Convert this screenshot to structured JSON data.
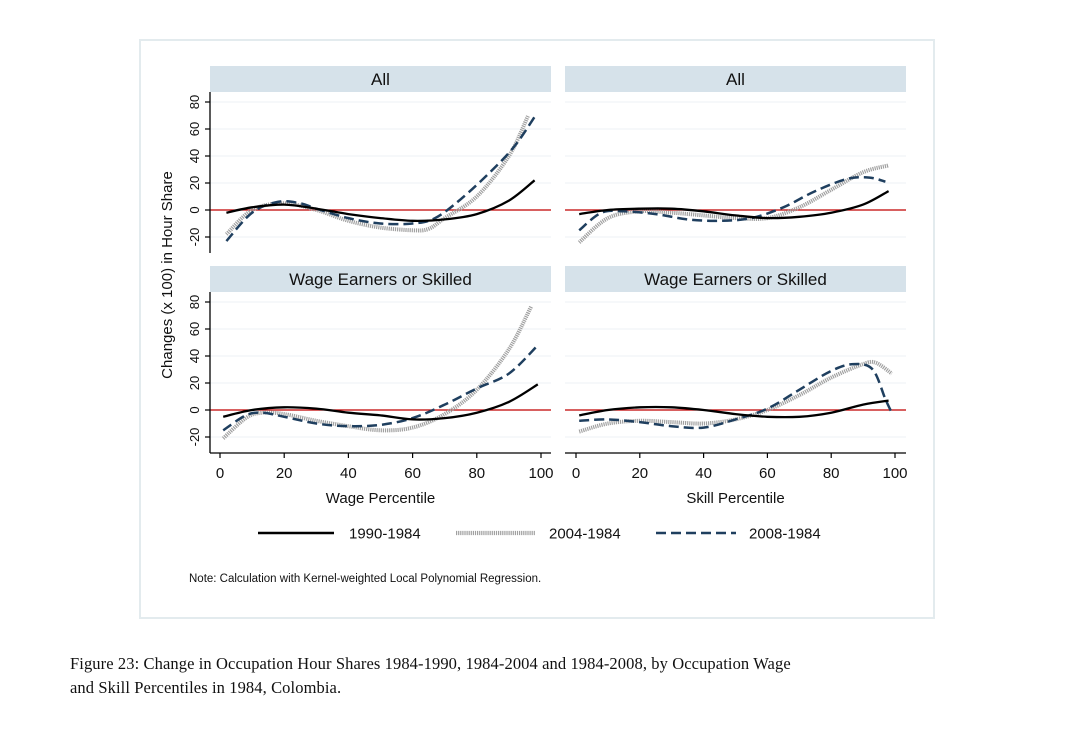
{
  "chart_data": [
    {
      "type": "line",
      "panel": "top-left",
      "title": "All",
      "xlabel": "",
      "ylabel": "Changes (x 100) in Hour Share",
      "xlim": [
        0,
        100
      ],
      "ylim": [
        -32,
        88
      ],
      "xticks": [
        0,
        20,
        40,
        60,
        80,
        100
      ],
      "yticks": [
        -20,
        0,
        20,
        40,
        60,
        80
      ],
      "show_xticks": false,
      "show_yticks": true,
      "reference_line_y": 0,
      "series": [
        {
          "name": "1990-1984",
          "points": [
            [
              2,
              -2
            ],
            [
              10,
              2
            ],
            [
              20,
              4
            ],
            [
              30,
              1
            ],
            [
              40,
              -3
            ],
            [
              50,
              -6
            ],
            [
              60,
              -8
            ],
            [
              70,
              -7
            ],
            [
              80,
              -3
            ],
            [
              90,
              7
            ],
            [
              98,
              22
            ]
          ]
        },
        {
          "name": "2004-1984",
          "points": [
            [
              2,
              -18
            ],
            [
              10,
              0
            ],
            [
              20,
              5
            ],
            [
              30,
              0
            ],
            [
              40,
              -8
            ],
            [
              50,
              -13
            ],
            [
              60,
              -15
            ],
            [
              65,
              -14
            ],
            [
              70,
              -6
            ],
            [
              80,
              10
            ],
            [
              90,
              40
            ],
            [
              96,
              70
            ]
          ]
        },
        {
          "name": "2008-1984",
          "points": [
            [
              2,
              -23
            ],
            [
              10,
              -2
            ],
            [
              18,
              6
            ],
            [
              25,
              5
            ],
            [
              30,
              1
            ],
            [
              40,
              -6
            ],
            [
              50,
              -10
            ],
            [
              60,
              -10
            ],
            [
              67,
              -6
            ],
            [
              75,
              8
            ],
            [
              85,
              30
            ],
            [
              92,
              48
            ],
            [
              98,
              69
            ]
          ]
        }
      ]
    },
    {
      "type": "line",
      "panel": "top-right",
      "title": "All",
      "xlabel": "",
      "ylabel": "",
      "xlim": [
        0,
        100
      ],
      "ylim": [
        -32,
        88
      ],
      "xticks": [
        0,
        20,
        40,
        60,
        80,
        100
      ],
      "yticks": [
        -20,
        0,
        20,
        40,
        60,
        80
      ],
      "show_xticks": false,
      "show_yticks": false,
      "reference_line_y": 0,
      "series": [
        {
          "name": "1990-1984",
          "points": [
            [
              1,
              -3
            ],
            [
              10,
              0
            ],
            [
              20,
              1
            ],
            [
              30,
              1
            ],
            [
              40,
              -1
            ],
            [
              50,
              -4
            ],
            [
              60,
              -6
            ],
            [
              70,
              -5
            ],
            [
              80,
              -2
            ],
            [
              90,
              4
            ],
            [
              98,
              14
            ]
          ]
        },
        {
          "name": "2004-1984",
          "points": [
            [
              1,
              -24
            ],
            [
              10,
              -6
            ],
            [
              20,
              -1
            ],
            [
              30,
              -2
            ],
            [
              40,
              -4
            ],
            [
              50,
              -6
            ],
            [
              60,
              -6
            ],
            [
              70,
              2
            ],
            [
              80,
              15
            ],
            [
              90,
              28
            ],
            [
              98,
              33
            ]
          ]
        },
        {
          "name": "2008-1984",
          "points": [
            [
              1,
              -15
            ],
            [
              8,
              -2
            ],
            [
              15,
              -1
            ],
            [
              25,
              -3
            ],
            [
              35,
              -7
            ],
            [
              45,
              -8
            ],
            [
              55,
              -6
            ],
            [
              65,
              2
            ],
            [
              75,
              14
            ],
            [
              85,
              23
            ],
            [
              92,
              24
            ],
            [
              97,
              21
            ]
          ]
        }
      ]
    },
    {
      "type": "line",
      "panel": "bottom-left",
      "title": "Wage Earners or Skilled",
      "xlabel": "Wage Percentile",
      "ylabel": "Changes (x 100) in Hour Share",
      "xlim": [
        0,
        100
      ],
      "ylim": [
        -32,
        88
      ],
      "xticks": [
        0,
        20,
        40,
        60,
        80,
        100
      ],
      "yticks": [
        -20,
        0,
        20,
        40,
        60,
        80
      ],
      "show_xticks": true,
      "show_yticks": true,
      "reference_line_y": 0,
      "series": [
        {
          "name": "1990-1984",
          "points": [
            [
              1,
              -5
            ],
            [
              10,
              0
            ],
            [
              20,
              2
            ],
            [
              30,
              1
            ],
            [
              40,
              -2
            ],
            [
              50,
              -4
            ],
            [
              60,
              -7
            ],
            [
              70,
              -6
            ],
            [
              80,
              -2
            ],
            [
              90,
              6
            ],
            [
              99,
              19
            ]
          ]
        },
        {
          "name": "2004-1984",
          "points": [
            [
              1,
              -21
            ],
            [
              8,
              -6
            ],
            [
              13,
              -2
            ],
            [
              20,
              -3
            ],
            [
              30,
              -8
            ],
            [
              40,
              -12
            ],
            [
              50,
              -15
            ],
            [
              60,
              -13
            ],
            [
              70,
              -3
            ],
            [
              80,
              15
            ],
            [
              90,
              45
            ],
            [
              97,
              77
            ]
          ]
        },
        {
          "name": "2008-1984",
          "points": [
            [
              1,
              -15
            ],
            [
              8,
              -4
            ],
            [
              13,
              -2
            ],
            [
              20,
              -5
            ],
            [
              30,
              -10
            ],
            [
              40,
              -12
            ],
            [
              50,
              -11
            ],
            [
              60,
              -6
            ],
            [
              70,
              4
            ],
            [
              80,
              16
            ],
            [
              90,
              27
            ],
            [
              99,
              48
            ]
          ]
        }
      ]
    },
    {
      "type": "line",
      "panel": "bottom-right",
      "title": "Wage Earners or Skilled",
      "xlabel": "Skill Percentile",
      "ylabel": "",
      "xlim": [
        0,
        100
      ],
      "ylim": [
        -32,
        88
      ],
      "xticks": [
        0,
        20,
        40,
        60,
        80,
        100
      ],
      "yticks": [
        -20,
        0,
        20,
        40,
        60,
        80
      ],
      "show_xticks": true,
      "show_yticks": false,
      "reference_line_y": 0,
      "series": [
        {
          "name": "1990-1984",
          "points": [
            [
              1,
              -4
            ],
            [
              10,
              0
            ],
            [
              20,
              2
            ],
            [
              30,
              2
            ],
            [
              40,
              0
            ],
            [
              50,
              -3
            ],
            [
              60,
              -5
            ],
            [
              70,
              -5
            ],
            [
              80,
              -2
            ],
            [
              90,
              4
            ],
            [
              98,
              7
            ]
          ]
        },
        {
          "name": "2004-1984",
          "points": [
            [
              1,
              -16
            ],
            [
              10,
              -10
            ],
            [
              20,
              -8
            ],
            [
              30,
              -9
            ],
            [
              40,
              -10
            ],
            [
              50,
              -7
            ],
            [
              60,
              0
            ],
            [
              70,
              11
            ],
            [
              80,
              24
            ],
            [
              90,
              34
            ],
            [
              94,
              35
            ],
            [
              99,
              27
            ]
          ]
        },
        {
          "name": "2008-1984",
          "points": [
            [
              1,
              -8
            ],
            [
              10,
              -7
            ],
            [
              20,
              -9
            ],
            [
              30,
              -12
            ],
            [
              40,
              -13
            ],
            [
              50,
              -7
            ],
            [
              60,
              1
            ],
            [
              70,
              15
            ],
            [
              80,
              29
            ],
            [
              87,
              34
            ],
            [
              93,
              30
            ],
            [
              97,
              8
            ],
            [
              99,
              -2
            ]
          ]
        }
      ]
    }
  ],
  "y_axis_title": "Changes (x 100) in Hour Share",
  "legend": {
    "placement": "bottom",
    "entries": [
      {
        "name": "1990-1984",
        "color": "#000000",
        "style": "solid"
      },
      {
        "name": "2004-1984",
        "color": "#a0a0a0",
        "style": "dotted-thick"
      },
      {
        "name": "2008-1984",
        "color": "#1f3f5f",
        "style": "dashed"
      }
    ]
  },
  "colors": {
    "strip_background": "#d6e2ea",
    "reference_line": "#c00000",
    "gridline": "#eef2f5",
    "frame_border": "#e3ebee"
  },
  "note": "Note: Calculation with Kernel-weighted Local Polynomial Regression.",
  "caption": {
    "line1": "Figure 23: Change in Occupation Hour Shares 1984-1990, 1984-2004 and 1984-2008, by Occupation Wage",
    "line2": "and Skill Percentiles in 1984, Colombia."
  }
}
